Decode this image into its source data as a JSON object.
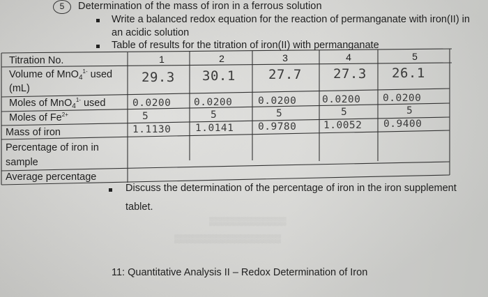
{
  "question_number": "5",
  "heading": "Determination of the mass of iron in a ferrous solution",
  "bullets": {
    "b1_line1": "Write a balanced redox equation for the reaction of permanganate with iron(II) in",
    "b1_line2": "an acidic solution",
    "b2": "Table of results for the titration of iron(II) with permanganate",
    "b3_line1": "Discuss the determination of the percentage of iron in the iron supplement",
    "b3_line2": "tablet."
  },
  "table": {
    "header_label": "Titration No.",
    "columns": [
      "1",
      "2",
      "3",
      "4",
      "5"
    ],
    "rows": [
      {
        "label_pre": "Volume of MnO",
        "label_sub": "4",
        "label_sup": "1-",
        "label_post": " used",
        "label_line2": "(mL)",
        "values": [
          "29.3",
          "30.1",
          "27.7",
          "27.3",
          "26.1"
        ]
      },
      {
        "label_pre": "Moles of MnO",
        "label_sub": "4",
        "label_sup": "1-",
        "label_post": " used",
        "values": [
          "0.0200",
          "0.0200",
          "0.0200",
          "0.0200",
          "0.0200"
        ]
      },
      {
        "label_pre": "Moles of Fe",
        "label_sup": "2+",
        "values": [
          "5",
          "5",
          "5",
          "5",
          "5"
        ]
      },
      {
        "label": "Mass of iron",
        "values": [
          "1.1130",
          "1.0141",
          "0.9780",
          "1.0052",
          "0.9400"
        ]
      },
      {
        "label_line1": "Percentage of iron in",
        "label_line2": "sample",
        "values": [
          "",
          "",
          "",
          "",
          ""
        ]
      },
      {
        "label": "Average percentage",
        "values": [
          ""
        ]
      }
    ]
  },
  "footer": "11: Quantitative Analysis II – Redox Determination of Iron",
  "colors": {
    "ink": "#1f1f1f",
    "pencil": "#3a3a3a",
    "paper": "#d6d6d3"
  }
}
